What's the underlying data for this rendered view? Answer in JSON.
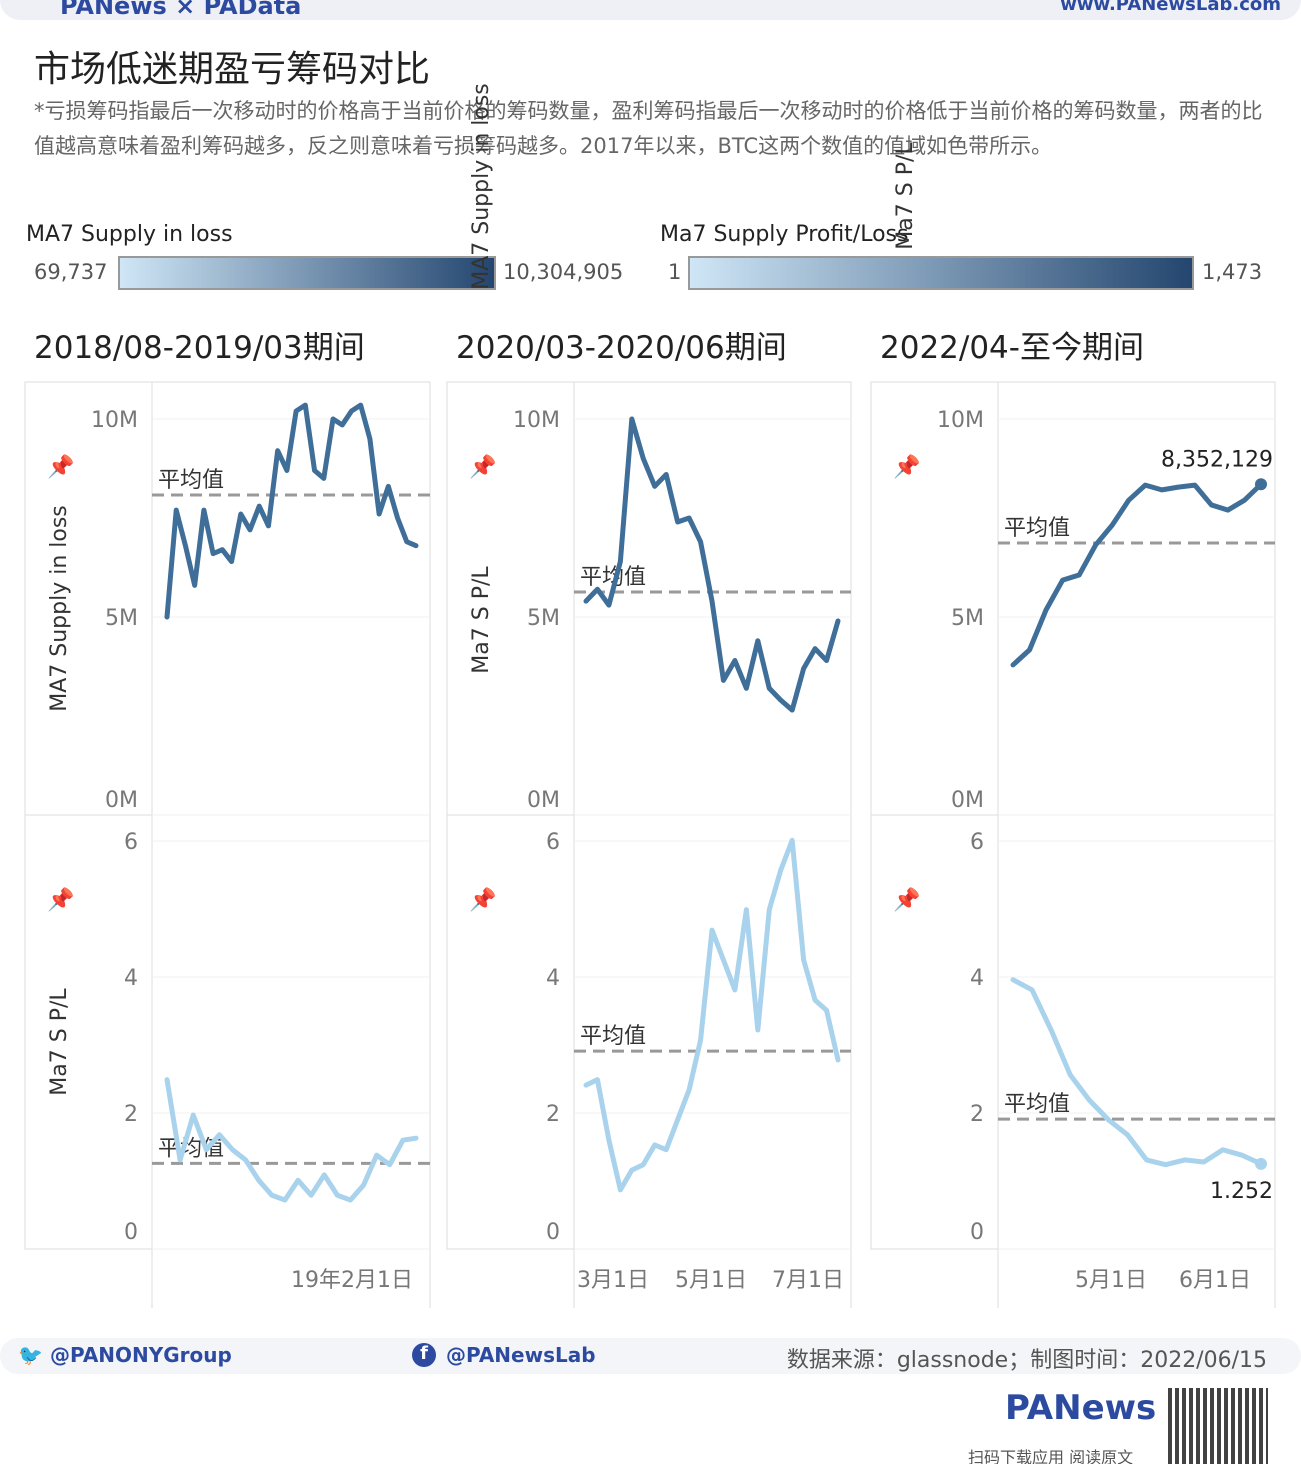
{
  "header": {
    "brand": "PANews × PAData",
    "url": "www.PANewsLab.com"
  },
  "title": "市场低迷期盈亏筹码对比",
  "description": "*亏损筹码指最后一次移动时的价格高于当前价格的筹码数量，盈利筹码指最后一次移动时的价格低于当前价格的筹码数量，两者的比值越高意味着盈利筹码越多，反之则意味着亏损筹码越多。2017年以来，BTC这两个数值的值域如色带所示。",
  "legends": [
    {
      "title": "MA7 Supply in loss",
      "min": "69,737",
      "max": "10,304,905",
      "color_from": "#cfe6f6",
      "color_to": "#24466f"
    },
    {
      "title": "Ma7 Supply Profit/Loss",
      "min": "1",
      "max": "1,473",
      "color_from": "#cfe6f6",
      "color_to": "#24466f"
    }
  ],
  "footer": {
    "twitter": "@PANONYGroup",
    "facebook": "@PANewsLab",
    "source": "数据来源：glassnode；制图时间：2022/06/15",
    "logo": "PANews",
    "qr_caption": "扫码下载应用 阅读原文"
  },
  "chart_data": [
    {
      "type": "line",
      "title": "2018/08-2019/03期间",
      "avg_label": "平均值",
      "top": {
        "ylabel": "MA7 Supply in loss",
        "unit": "M",
        "ylim": [
          0,
          10
        ],
        "ticks": [
          "10M",
          "5M",
          "0M"
        ],
        "avg": 8.08,
        "color": "#3f6e99",
        "values": [
          5.0,
          7.7,
          6.8,
          5.8,
          7.7,
          6.6,
          6.7,
          6.4,
          7.6,
          7.2,
          7.8,
          7.3,
          9.2,
          8.7,
          10.2,
          10.35,
          8.7,
          8.5,
          10.0,
          9.85,
          10.2,
          10.35,
          9.5,
          7.6,
          8.3,
          7.5,
          6.9,
          6.8
        ]
      },
      "bottom": {
        "ylabel": "Ma7 S P/L",
        "ylim": [
          0,
          6
        ],
        "ticks": [
          "6",
          "4",
          "2",
          "0"
        ],
        "avg": 1.26,
        "color": "#a9d2ec",
        "values": [
          2.49,
          1.31,
          1.97,
          1.46,
          1.68,
          1.46,
          1.31,
          1.01,
          0.79,
          0.72,
          1.01,
          0.79,
          1.09,
          0.79,
          0.72,
          0.94,
          1.38,
          1.24,
          1.6,
          1.63
        ]
      },
      "x_ticks": [
        "19年2月1日"
      ]
    },
    {
      "type": "line",
      "title": "2020/03-2020/06期间",
      "avg_label": "平均值",
      "top": {
        "ylabel": "MA7 Supply in loss",
        "unit": "M",
        "ylim": [
          0,
          10
        ],
        "ticks": [
          "10M",
          "5M",
          "0M"
        ],
        "avg": 5.63,
        "color": "#3f6e99",
        "values": [
          5.4,
          5.7,
          5.3,
          6.4,
          10.0,
          9.0,
          8.3,
          8.6,
          7.4,
          7.5,
          6.9,
          5.4,
          3.4,
          3.9,
          3.2,
          4.4,
          3.2,
          2.9,
          2.65,
          3.7,
          4.2,
          3.9,
          4.9
        ]
      },
      "bottom": {
        "ylabel": "Ma7 S P/L",
        "ylim": [
          0,
          6
        ],
        "ticks": [
          "6",
          "4",
          "2",
          "0"
        ],
        "avg": 2.91,
        "color": "#a9d2ec",
        "values": [
          2.41,
          2.49,
          1.6,
          0.87,
          1.16,
          1.24,
          1.53,
          1.46,
          1.9,
          2.34,
          3.07,
          4.69,
          4.25,
          3.81,
          4.99,
          3.22,
          4.99,
          5.57,
          6.01,
          4.25,
          3.66,
          3.51,
          2.78
        ]
      },
      "x_ticks": [
        "3月1日",
        "5月1日",
        "7月1日"
      ]
    },
    {
      "type": "line",
      "title": "2022/04-至今期间",
      "avg_label": "平均值",
      "top": {
        "ylabel": "MA7 Supply in loss",
        "unit": "M",
        "ylim": [
          0,
          10
        ],
        "ticks": [
          "10M",
          "5M",
          "0M"
        ],
        "avg": 6.87,
        "color": "#3f6e99",
        "last_label": "8,352,129",
        "values": [
          3.79,
          4.17,
          5.18,
          5.93,
          6.06,
          6.82,
          7.32,
          7.95,
          8.33,
          8.21,
          8.28,
          8.33,
          7.83,
          7.7,
          7.95,
          8.352
        ]
      },
      "bottom": {
        "ylabel": "Ma7 S P/L",
        "ylim": [
          0,
          6
        ],
        "ticks": [
          "6",
          "4",
          "2",
          "0"
        ],
        "avg": 1.91,
        "color": "#a9d2ec",
        "last_label": "1.252",
        "values": [
          3.96,
          3.81,
          3.22,
          2.56,
          2.19,
          1.9,
          1.68,
          1.31,
          1.24,
          1.31,
          1.28,
          1.46,
          1.38,
          1.252
        ]
      },
      "x_ticks": [
        "5月1日",
        "6月1日"
      ]
    }
  ]
}
